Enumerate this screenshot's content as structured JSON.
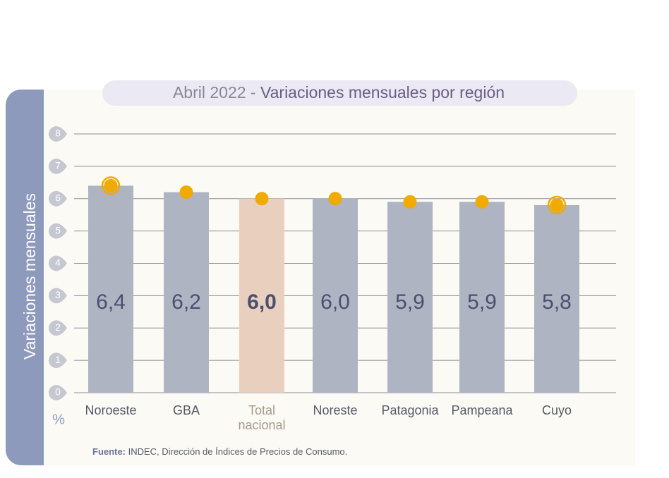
{
  "chart_data": {
    "type": "bar",
    "title": {
      "date": "Abril 2022 -",
      "text": "Variaciones mensuales por región"
    },
    "y_label": "Variaciones mensuales",
    "unit": "%",
    "categories": [
      "Noroeste",
      "GBA",
      "Total nacional",
      "Noreste",
      "Patagonia",
      "Pampeana",
      "Cuyo"
    ],
    "values": [
      6.4,
      6.2,
      6.0,
      6.0,
      5.9,
      5.9,
      5.8
    ],
    "value_labels": [
      "6,4",
      "6,2",
      "6,0",
      "6,0",
      "5,9",
      "5,9",
      "5,8"
    ],
    "bar_colors": [
      "#aeb4c1",
      "#aeb4c1",
      "#e9cfbd",
      "#aeb4c1",
      "#aeb4c1",
      "#aeb4c1",
      "#aeb4c1"
    ],
    "emphasis": 2,
    "marker_color": "#f0aa00",
    "markers_ringed": [
      true,
      false,
      false,
      false,
      false,
      false,
      true
    ],
    "ylim": [
      0,
      8
    ],
    "yticks": [
      0,
      1,
      2,
      3,
      4,
      5,
      6,
      7,
      8
    ],
    "grid": true,
    "source": {
      "label": "Fuente:",
      "text": "INDEC, Dirección de Índices de Precios de Consumo."
    }
  }
}
